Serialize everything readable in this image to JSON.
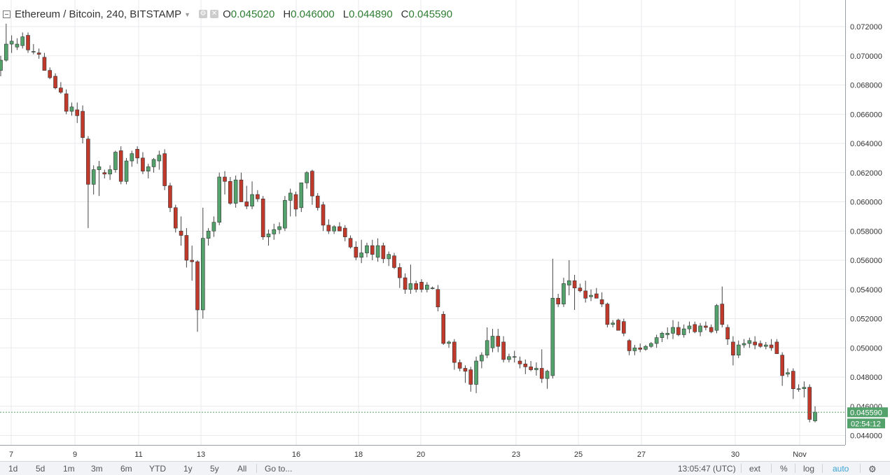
{
  "legend": {
    "symbol": "Ethereum / Bitcoin, 240, BITSTAMP",
    "open_label": "O",
    "open": "0.045020",
    "high_label": "H",
    "high": "0.046000",
    "low_label": "L",
    "low": "0.044890",
    "close_label": "C",
    "close": "0.045590"
  },
  "colors": {
    "up": "#53a26c",
    "down": "#c1392b",
    "grid": "#e9eaec",
    "axis_text": "#333333",
    "price_tag": "#53a26c",
    "axis_line": "#9aa0a6"
  },
  "icons": [
    "collapse-icon",
    "gear-icon",
    "close-icon",
    "chevron-down-icon",
    "settings-icon"
  ],
  "chart_data": {
    "type": "candlestick",
    "x_tick_labels": [
      "7",
      "9",
      "11",
      "13",
      "16",
      "18",
      "20",
      "23",
      "25",
      "27",
      "30",
      "Nov"
    ],
    "y_tick_labels": [
      "0.072000",
      "0.070000",
      "0.068000",
      "0.066000",
      "0.064000",
      "0.062000",
      "0.060000",
      "0.058000",
      "0.056000",
      "0.054000",
      "0.052000",
      "0.050000",
      "0.048000",
      "0.046000",
      "0.044000"
    ],
    "ylim": [
      0.0437,
      0.0732
    ],
    "grid": true,
    "last_price": "0.045590",
    "countdown": "02:54:12",
    "candles": [
      [
        0.069,
        0.07,
        0.0686,
        0.0697
      ],
      [
        0.0697,
        0.0722,
        0.0696,
        0.0708
      ],
      [
        0.0708,
        0.0714,
        0.0702,
        0.071
      ],
      [
        0.0706,
        0.0712,
        0.0704,
        0.0708
      ],
      [
        0.0707,
        0.0716,
        0.0705,
        0.0713
      ],
      [
        0.0714,
        0.0716,
        0.0702,
        0.0704
      ],
      [
        0.0703,
        0.0708,
        0.0701,
        0.0703
      ],
      [
        0.0702,
        0.0705,
        0.0698,
        0.0701
      ],
      [
        0.0699,
        0.0702,
        0.069,
        0.069
      ],
      [
        0.069,
        0.0692,
        0.0684,
        0.0685
      ],
      [
        0.0686,
        0.0688,
        0.0677,
        0.0678
      ],
      [
        0.0678,
        0.0682,
        0.0674,
        0.0675
      ],
      [
        0.0674,
        0.0677,
        0.066,
        0.0662
      ],
      [
        0.0662,
        0.0668,
        0.0659,
        0.0665
      ],
      [
        0.0663,
        0.0668,
        0.0654,
        0.0659
      ],
      [
        0.0662,
        0.0666,
        0.064,
        0.0644
      ],
      [
        0.0643,
        0.0645,
        0.0582,
        0.0612
      ],
      [
        0.0612,
        0.0625,
        0.0605,
        0.0622
      ],
      [
        0.0622,
        0.0628,
        0.0604,
        0.0624
      ],
      [
        0.062,
        0.0622,
        0.0616,
        0.0619
      ],
      [
        0.0619,
        0.0625,
        0.0615,
        0.0622
      ],
      [
        0.0622,
        0.0635,
        0.062,
        0.0634
      ],
      [
        0.0635,
        0.0638,
        0.0612,
        0.0614
      ],
      [
        0.0614,
        0.063,
        0.0612,
        0.0628
      ],
      [
        0.0628,
        0.0635,
        0.0624,
        0.0633
      ],
      [
        0.0636,
        0.0638,
        0.0626,
        0.063
      ],
      [
        0.063,
        0.0634,
        0.0619,
        0.0621
      ],
      [
        0.0621,
        0.0626,
        0.0616,
        0.0624
      ],
      [
        0.0624,
        0.063,
        0.062,
        0.0629
      ],
      [
        0.0628,
        0.0635,
        0.0622,
        0.0632
      ],
      [
        0.0633,
        0.0636,
        0.0608,
        0.0611
      ],
      [
        0.0611,
        0.0613,
        0.0593,
        0.0596
      ],
      [
        0.0596,
        0.0598,
        0.0579,
        0.0582
      ],
      [
        0.058,
        0.059,
        0.057,
        0.0577
      ],
      [
        0.0577,
        0.0582,
        0.0555,
        0.056
      ],
      [
        0.056,
        0.057,
        0.0546,
        0.0559
      ],
      [
        0.0559,
        0.056,
        0.0511,
        0.0526
      ],
      [
        0.0526,
        0.0596,
        0.052,
        0.0575
      ],
      [
        0.0575,
        0.0582,
        0.057,
        0.058
      ],
      [
        0.058,
        0.059,
        0.0576,
        0.0586
      ],
      [
        0.0586,
        0.062,
        0.0584,
        0.0617
      ],
      [
        0.0617,
        0.0621,
        0.0605,
        0.0614
      ],
      [
        0.0614,
        0.0617,
        0.0598,
        0.0599
      ],
      [
        0.0599,
        0.0618,
        0.0596,
        0.0615
      ],
      [
        0.0615,
        0.062,
        0.06,
        0.06
      ],
      [
        0.06,
        0.0611,
        0.0595,
        0.0597
      ],
      [
        0.0597,
        0.0614,
        0.0595,
        0.0605
      ],
      [
        0.0605,
        0.0608,
        0.06,
        0.0602
      ],
      [
        0.0602,
        0.0604,
        0.0574,
        0.0576
      ],
      [
        0.0576,
        0.0581,
        0.057,
        0.0578
      ],
      [
        0.0578,
        0.0585,
        0.0574,
        0.0581
      ],
      [
        0.0581,
        0.0586,
        0.0578,
        0.0583
      ],
      [
        0.0582,
        0.0604,
        0.058,
        0.0601
      ],
      [
        0.0601,
        0.0609,
        0.059,
        0.0606
      ],
      [
        0.0605,
        0.0607,
        0.059,
        0.0595
      ],
      [
        0.0596,
        0.0612,
        0.0593,
        0.0613
      ],
      [
        0.0613,
        0.0621,
        0.0609,
        0.062
      ],
      [
        0.0621,
        0.0622,
        0.0598,
        0.0604
      ],
      [
        0.0604,
        0.0606,
        0.0594,
        0.0596
      ],
      [
        0.0598,
        0.06,
        0.058,
        0.0584
      ],
      [
        0.0584,
        0.0588,
        0.0578,
        0.058
      ],
      [
        0.058,
        0.0584,
        0.0578,
        0.0583
      ],
      [
        0.0583,
        0.0586,
        0.058,
        0.058
      ],
      [
        0.0582,
        0.0584,
        0.0573,
        0.0576
      ],
      [
        0.0575,
        0.0577,
        0.0568,
        0.0569
      ],
      [
        0.0569,
        0.0573,
        0.056,
        0.0562
      ],
      [
        0.0562,
        0.0574,
        0.0558,
        0.0565
      ],
      [
        0.0565,
        0.0572,
        0.0562,
        0.057
      ],
      [
        0.057,
        0.0574,
        0.056,
        0.0564
      ],
      [
        0.0562,
        0.0575,
        0.0559,
        0.057
      ],
      [
        0.057,
        0.0572,
        0.0558,
        0.0561
      ],
      [
        0.0561,
        0.0566,
        0.0556,
        0.0564
      ],
      [
        0.0563,
        0.0565,
        0.0554,
        0.0555
      ],
      [
        0.0555,
        0.0558,
        0.0541,
        0.0548
      ],
      [
        0.0548,
        0.0551,
        0.0537,
        0.054
      ],
      [
        0.054,
        0.0557,
        0.0537,
        0.0544
      ],
      [
        0.0544,
        0.0546,
        0.0538,
        0.054
      ],
      [
        0.0545,
        0.0547,
        0.0538,
        0.054
      ],
      [
        0.054,
        0.0545,
        0.0538,
        0.0543
      ],
      [
        0.0541,
        0.0542,
        0.054,
        0.0541
      ],
      [
        0.054,
        0.0543,
        0.0525,
        0.0528
      ],
      [
        0.0523,
        0.0525,
        0.0502,
        0.0503
      ],
      [
        0.0503,
        0.0505,
        0.05,
        0.0504
      ],
      [
        0.0504,
        0.0506,
        0.0485,
        0.049
      ],
      [
        0.049,
        0.0492,
        0.0484,
        0.0486
      ],
      [
        0.0486,
        0.0488,
        0.0476,
        0.0484
      ],
      [
        0.0485,
        0.0487,
        0.047,
        0.0475
      ],
      [
        0.0475,
        0.0494,
        0.0469,
        0.0491
      ],
      [
        0.0491,
        0.0497,
        0.0486,
        0.0495
      ],
      [
        0.0495,
        0.0514,
        0.0493,
        0.0505
      ],
      [
        0.05,
        0.0513,
        0.0497,
        0.0508
      ],
      [
        0.0508,
        0.0513,
        0.0497,
        0.0501
      ],
      [
        0.0504,
        0.0508,
        0.049,
        0.0492
      ],
      [
        0.0492,
        0.0496,
        0.049,
        0.0494
      ],
      [
        0.0494,
        0.0498,
        0.049,
        0.0494
      ],
      [
        0.0491,
        0.0494,
        0.0486,
        0.0489
      ],
      [
        0.0489,
        0.0492,
        0.0482,
        0.0487
      ],
      [
        0.0487,
        0.0491,
        0.0484,
        0.0485
      ],
      [
        0.0485,
        0.049,
        0.0481,
        0.0486
      ],
      [
        0.0486,
        0.0499,
        0.0476,
        0.0479
      ],
      [
        0.0479,
        0.0485,
        0.0472,
        0.0484
      ],
      [
        0.0481,
        0.0561,
        0.0479,
        0.0534
      ],
      [
        0.0534,
        0.0537,
        0.0528,
        0.053
      ],
      [
        0.053,
        0.0548,
        0.0528,
        0.0544
      ],
      [
        0.0543,
        0.056,
        0.0536,
        0.0546
      ],
      [
        0.0546,
        0.055,
        0.0526,
        0.0541
      ],
      [
        0.0541,
        0.0544,
        0.0538,
        0.0539
      ],
      [
        0.0539,
        0.0546,
        0.0531,
        0.0534
      ],
      [
        0.0535,
        0.054,
        0.0532,
        0.0536
      ],
      [
        0.0537,
        0.0541,
        0.0535,
        0.0534
      ],
      [
        0.0533,
        0.0538,
        0.0528,
        0.053
      ],
      [
        0.053,
        0.0531,
        0.0514,
        0.0516
      ],
      [
        0.0516,
        0.0519,
        0.0514,
        0.0517
      ],
      [
        0.0519,
        0.052,
        0.0513,
        0.0512
      ],
      [
        0.0518,
        0.052,
        0.0508,
        0.051
      ],
      [
        0.0505,
        0.0506,
        0.0495,
        0.0498
      ],
      [
        0.0498,
        0.0502,
        0.0495,
        0.05
      ],
      [
        0.05,
        0.0503,
        0.0497,
        0.0499
      ],
      [
        0.0499,
        0.0502,
        0.0498,
        0.0501
      ],
      [
        0.0501,
        0.0504,
        0.05,
        0.0503
      ],
      [
        0.0503,
        0.0509,
        0.05,
        0.0507
      ],
      [
        0.0507,
        0.0511,
        0.0504,
        0.051
      ],
      [
        0.0509,
        0.0514,
        0.0506,
        0.051
      ],
      [
        0.051,
        0.0519,
        0.0506,
        0.0514
      ],
      [
        0.0514,
        0.0518,
        0.0508,
        0.0509
      ],
      [
        0.0509,
        0.0516,
        0.0507,
        0.0513
      ],
      [
        0.0513,
        0.0518,
        0.051,
        0.0515
      ],
      [
        0.0516,
        0.0518,
        0.051,
        0.0511
      ],
      [
        0.0511,
        0.0517,
        0.0508,
        0.0515
      ],
      [
        0.0515,
        0.0518,
        0.0512,
        0.0514
      ],
      [
        0.0514,
        0.0516,
        0.051,
        0.0511
      ],
      [
        0.0512,
        0.053,
        0.051,
        0.0529
      ],
      [
        0.053,
        0.0542,
        0.0514,
        0.0516
      ],
      [
        0.0514,
        0.0516,
        0.0502,
        0.0506
      ],
      [
        0.0504,
        0.0508,
        0.0488,
        0.0495
      ],
      [
        0.0495,
        0.0505,
        0.0493,
        0.0502
      ],
      [
        0.0502,
        0.0506,
        0.05,
        0.0503
      ],
      [
        0.0503,
        0.0507,
        0.05,
        0.0505
      ],
      [
        0.0504,
        0.0508,
        0.0499,
        0.0502
      ],
      [
        0.0503,
        0.0505,
        0.05,
        0.0501
      ],
      [
        0.0501,
        0.0504,
        0.0499,
        0.0502
      ],
      [
        0.0502,
        0.0506,
        0.0498,
        0.05
      ],
      [
        0.0504,
        0.0506,
        0.0496,
        0.0496
      ],
      [
        0.0495,
        0.0497,
        0.0474,
        0.0481
      ],
      [
        0.0482,
        0.0486,
        0.048,
        0.0483
      ],
      [
        0.0484,
        0.0486,
        0.0465,
        0.0472
      ],
      [
        0.0472,
        0.0475,
        0.047,
        0.0472
      ],
      [
        0.0472,
        0.0477,
        0.0466,
        0.0473
      ],
      [
        0.0473,
        0.0475,
        0.0449,
        0.0451
      ],
      [
        0.045,
        0.046,
        0.0449,
        0.0456
      ]
    ]
  },
  "price_axis": {
    "last_price_label": "0.045590",
    "countdown_label": "02:54:12"
  },
  "bottom_bar": {
    "ranges": [
      "1d",
      "5d",
      "1m",
      "3m",
      "6m",
      "YTD",
      "1y",
      "5y",
      "All"
    ],
    "goto": "Go to...",
    "time": "13:05:47 (UTC)",
    "ext": "ext",
    "percent": "%",
    "log": "log",
    "auto": "auto"
  }
}
